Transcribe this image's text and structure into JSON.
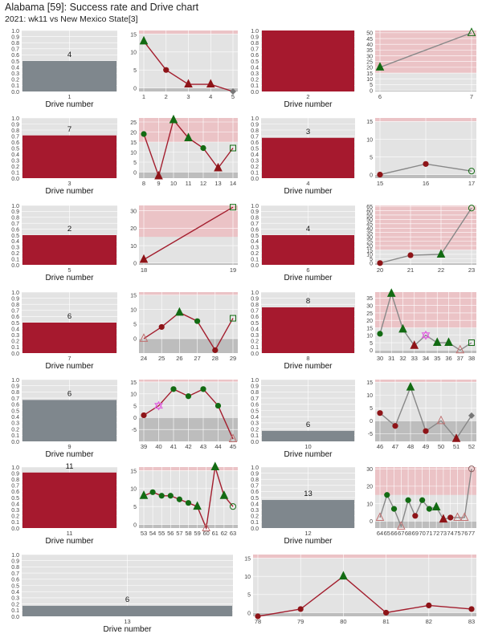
{
  "title": "Alabama [59]: Success rate and Drive chart",
  "subtitle": "2021: wk11 vs New Mexico State[3]",
  "colors": {
    "panel_bg": "#E3E3E3",
    "red_band": "#EBC3C6",
    "gray_band": "#BDBDBD",
    "bar_red": "#A6192E",
    "bar_gray": "#7F878D",
    "line_red": "#A31E2E",
    "line_gray": "#888888",
    "success_green": "#136B13",
    "fail_red": "#8E1418",
    "special_magenta": "#E060E0"
  },
  "drive_axis_label": "Drive number",
  "success_y_ticks": [
    "0.0",
    "0.1",
    "0.2",
    "0.3",
    "0.4",
    "0.5",
    "0.6",
    "0.7",
    "0.8",
    "0.9",
    "1.0"
  ],
  "chart_data": [
    {
      "type": "bar",
      "drive": 1,
      "plays": 4,
      "success_rate": 0.5,
      "color": "gray"
    },
    {
      "type": "line",
      "x": [
        1,
        2,
        3,
        4,
        5
      ],
      "y": [
        13,
        5,
        1,
        1,
        -1
      ],
      "markers": [
        "tri-green",
        "dot-red",
        "tri-red",
        "tri-red",
        "diamond-gray"
      ],
      "line_color": "red",
      "yticks": [
        0,
        5,
        10,
        15
      ],
      "bands": {
        "red_from": 15,
        "gray_to": 0
      },
      "ylim": [
        -1,
        16
      ]
    },
    {
      "type": "bar",
      "drive": 2,
      "plays": "",
      "success_rate": 1.0,
      "color": "red"
    },
    {
      "type": "line",
      "x": [
        6,
        7
      ],
      "y": [
        20,
        50
      ],
      "markers": [
        "tri-green",
        "tri-open-green"
      ],
      "line_color": "gray",
      "yticks": [
        0,
        5,
        10,
        15,
        20,
        25,
        30,
        35,
        40,
        45,
        50
      ],
      "bands": {
        "red_from": 15,
        "gray_to": 0
      },
      "ylim": [
        -1,
        52
      ]
    },
    {
      "type": "bar",
      "drive": 3,
      "plays": 7,
      "success_rate": 0.71,
      "color": "red"
    },
    {
      "type": "line",
      "x": [
        8,
        9,
        10,
        11,
        12,
        13,
        14
      ],
      "y": [
        19,
        -2,
        26,
        17,
        12,
        2,
        12
      ],
      "markers": [
        "dot-green",
        "tri-red",
        "tri-green",
        "tri-green",
        "dot-green",
        "tri-red",
        "sq-open-green"
      ],
      "line_color": "red",
      "yticks": [
        0,
        5,
        10,
        15,
        20,
        25
      ],
      "bands": {
        "red_from": 15,
        "gray_to": 0
      },
      "ylim": [
        -3,
        27
      ]
    },
    {
      "type": "bar",
      "drive": 4,
      "plays": 3,
      "success_rate": 0.67,
      "color": "red"
    },
    {
      "type": "line",
      "x": [
        15,
        16,
        17
      ],
      "y": [
        0,
        3,
        1
      ],
      "markers": [
        "dot-red",
        "dot-red",
        "circ-open-green"
      ],
      "line_color": "gray",
      "yticks": [
        0,
        5,
        10,
        15
      ],
      "bands": {
        "red_from": 15,
        "gray_to": 0
      },
      "ylim": [
        -1,
        16
      ]
    },
    {
      "type": "bar",
      "drive": 5,
      "plays": 2,
      "success_rate": 0.5,
      "color": "red"
    },
    {
      "type": "line",
      "x": [
        18,
        19
      ],
      "y": [
        2,
        32
      ],
      "markers": [
        "tri-red",
        "sq-open-green"
      ],
      "line_color": "red",
      "yticks": [
        0,
        10,
        20,
        30
      ],
      "bands": {
        "red_from": 15,
        "gray_to": 0
      },
      "ylim": [
        -1,
        33
      ]
    },
    {
      "type": "bar",
      "drive": 6,
      "plays": 4,
      "success_rate": 0.5,
      "color": "red"
    },
    {
      "type": "line",
      "x": [
        20,
        21,
        22,
        23
      ],
      "y": [
        0,
        9,
        10,
        63
      ],
      "markers": [
        "dot-red",
        "dot-red",
        "tri-green",
        "circ-open-green"
      ],
      "line_color": "gray",
      "yticks": [
        0,
        5,
        10,
        15,
        20,
        25,
        30,
        35,
        40,
        45,
        50,
        55,
        60,
        65
      ],
      "bands": {
        "red_from": 15,
        "gray_to": 0
      },
      "ylim": [
        -2,
        66
      ]
    },
    {
      "type": "bar",
      "drive": 7,
      "plays": 6,
      "success_rate": 0.5,
      "color": "red"
    },
    {
      "type": "line",
      "x": [
        24,
        25,
        26,
        27,
        28,
        29
      ],
      "y": [
        0,
        4,
        9,
        6,
        -4,
        7
      ],
      "markers": [
        "tri-open-red",
        "dot-red",
        "tri-green",
        "dot-green",
        "dot-red",
        "sq-open-green"
      ],
      "line_color": "red",
      "yticks": [
        0,
        5,
        10,
        15
      ],
      "bands": {
        "red_from": 15,
        "gray_to": 0
      },
      "ylim": [
        -5,
        16
      ]
    },
    {
      "type": "bar",
      "drive": 8,
      "plays": 8,
      "success_rate": 0.75,
      "color": "red"
    },
    {
      "type": "line",
      "x": [
        30,
        31,
        32,
        33,
        34,
        35,
        36,
        37,
        38
      ],
      "y": [
        11,
        38,
        14,
        3,
        10,
        5,
        5,
        0,
        5
      ],
      "markers": [
        "dot-green",
        "tri-green",
        "tri-green",
        "tri-red",
        "star-magenta",
        "tri-green",
        "tri-green",
        "tri-open-red",
        "sq-open-green"
      ],
      "line_color": "gray",
      "yticks": [
        0,
        5,
        10,
        15,
        20,
        25,
        30,
        35
      ],
      "bands": {
        "red_from": 15,
        "gray_to": 0
      },
      "ylim": [
        -2,
        39
      ]
    },
    {
      "type": "bar",
      "drive": 9,
      "plays": 6,
      "success_rate": 0.67,
      "color": "gray"
    },
    {
      "type": "line",
      "x": [
        39,
        40,
        41,
        42,
        43,
        44,
        45
      ],
      "y": [
        1,
        5,
        12,
        9,
        12,
        5,
        -9
      ],
      "markers": [
        "dot-red",
        "star-magenta",
        "dot-green",
        "dot-green",
        "dot-green",
        "dot-green",
        "tri-open-red"
      ],
      "line_color": "red",
      "yticks": [
        -5,
        0,
        5,
        10,
        15
      ],
      "bands": {
        "red_from": 15,
        "gray_to": 0
      },
      "ylim": [
        -10,
        16
      ]
    },
    {
      "type": "bar",
      "drive": 10,
      "plays": 6,
      "success_rate": 0.17,
      "color": "gray"
    },
    {
      "type": "line",
      "x": [
        46,
        47,
        48,
        49,
        50,
        51,
        52
      ],
      "y": [
        3,
        -2,
        13,
        -4,
        0,
        -7,
        2
      ],
      "markers": [
        "dot-red",
        "dot-red",
        "tri-green",
        "dot-red",
        "tri-open-red",
        "tri-red",
        "diamond-gray"
      ],
      "line_color": "gray",
      "yticks": [
        -5,
        0,
        5,
        10,
        15
      ],
      "bands": {
        "red_from": 15,
        "gray_to": 0
      },
      "ylim": [
        -8,
        16
      ]
    },
    {
      "type": "bar",
      "drive": 11,
      "plays": 11,
      "success_rate": 0.91,
      "color": "red"
    },
    {
      "type": "line",
      "x": [
        53,
        54,
        55,
        56,
        57,
        58,
        59,
        60,
        61,
        62,
        63
      ],
      "y": [
        8,
        9,
        8,
        8,
        7,
        6,
        5,
        -1,
        16,
        8,
        5
      ],
      "markers": [
        "tri-green",
        "dot-green",
        "dot-green",
        "dot-green",
        "dot-green",
        "dot-green",
        "tri-green",
        "tri-open-red",
        "tri-green",
        "tri-green",
        "circ-open-green"
      ],
      "line_color": "red",
      "yticks": [
        0,
        5,
        10,
        15
      ],
      "bands": {
        "red_from": 15,
        "gray_to": 0
      },
      "ylim": [
        -1,
        16
      ]
    },
    {
      "type": "bar",
      "drive": 12,
      "plays": 13,
      "success_rate": 0.46,
      "color": "gray"
    },
    {
      "type": "line",
      "x": [
        64,
        65,
        66,
        67,
        68,
        69,
        70,
        71,
        72,
        73,
        74,
        75,
        76,
        77
      ],
      "y": [
        2,
        15,
        7,
        -3,
        12,
        3,
        12,
        7,
        8,
        1,
        2,
        2,
        2,
        30
      ],
      "markers": [
        "tri-open-red",
        "dot-green",
        "dot-green",
        "tri-open-red",
        "dot-green",
        "dot-red",
        "dot-green",
        "dot-green",
        "tri-green",
        "tri-red",
        "dot-red",
        "tri-open-red",
        "tri-open-red",
        "circ-open-gray"
      ],
      "line_color": "gray",
      "yticks": [
        0,
        10,
        20,
        30
      ],
      "bands": {
        "red_from": 15,
        "gray_to": 0
      },
      "ylim": [
        -4,
        31
      ]
    },
    {
      "type": "bar",
      "drive": 13,
      "plays": 6,
      "success_rate": 0.17,
      "color": "gray"
    },
    {
      "type": "line",
      "x": [
        78,
        79,
        80,
        81,
        82,
        83
      ],
      "y": [
        -1,
        1,
        10,
        0,
        2,
        1
      ],
      "markers": [
        "dot-red",
        "dot-red",
        "tri-green",
        "dot-red",
        "dot-red",
        "dot-red"
      ],
      "line_color": "red",
      "yticks": [
        0,
        5,
        10,
        15
      ],
      "bands": {
        "red_from": 15,
        "gray_to": 0
      },
      "ylim": [
        -1,
        16
      ]
    }
  ]
}
